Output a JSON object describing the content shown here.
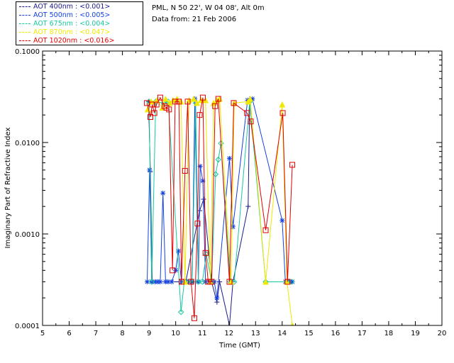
{
  "site_info": {
    "location": "PML, N 50 22', W 04 08', Alt 0m",
    "date": "Data from: 21 Feb 2006"
  },
  "legend": {
    "items": [
      {
        "label": "AOT  400nm : <0.001>",
        "color": "#1a1a8c"
      },
      {
        "label": "AOT  500nm : <0.005>",
        "color": "#1440e0"
      },
      {
        "label": "AOT  675nm : <0.004>",
        "color": "#18c8a0"
      },
      {
        "label": "AOT  870nm : <0.047>",
        "color": "#f0e800"
      },
      {
        "label": "AOT 1020nm : <0.016>",
        "color": "#e00000"
      }
    ]
  },
  "chart_data": {
    "type": "line",
    "title": "",
    "xlabel": "Time (GMT)",
    "ylabel": "Imaginary Part of Refractive Index",
    "xlim": [
      5,
      20
    ],
    "ylim": [
      0.0001,
      0.1
    ],
    "yscale": "log",
    "x_ticks": [
      5,
      6,
      7,
      8,
      9,
      10,
      11,
      12,
      13,
      14,
      15,
      16,
      17,
      18,
      19,
      20
    ],
    "y_ticks": [
      "0.0001",
      "0.0010",
      "0.0100",
      "0.1000"
    ],
    "y_tick_values": [
      0.0001,
      0.001,
      0.01,
      0.1
    ],
    "grid": false,
    "legend_position": "above-top-left",
    "series": [
      {
        "name": "AOT  400nm : <0.001>",
        "color": "#1a1a8c",
        "marker": "plus",
        "x": [
          8.98,
          9.05,
          9.12,
          10.2,
          10.38,
          10.9,
          11.05,
          11.35,
          11.55,
          11.65,
          12.02,
          12.15,
          12.72,
          12.78
        ],
        "y": [
          0.028,
          0.0048,
          0.0003,
          0.0003,
          0.0003,
          0.0018,
          0.0024,
          0.0003,
          0.00018,
          0.0003,
          0.0001,
          0.0003,
          0.002,
          0.03
        ]
      },
      {
        "name": "AOT  500nm : <0.005>",
        "color": "#1440e0",
        "marker": "star",
        "x": [
          8.93,
          9.02,
          9.1,
          9.22,
          9.32,
          9.42,
          9.52,
          9.62,
          9.72,
          9.85,
          10.0,
          10.1,
          10.22,
          10.38,
          10.5,
          10.62,
          10.72,
          10.85,
          10.92,
          11.02,
          11.12,
          11.25,
          11.35,
          11.45,
          11.55,
          12.02,
          12.15,
          12.7,
          12.8,
          12.88,
          14.0,
          14.12,
          14.2,
          14.3,
          14.38
        ],
        "y": [
          0.0003,
          0.005,
          0.0003,
          0.0003,
          0.0003,
          0.0003,
          0.0028,
          0.0003,
          0.0003,
          0.0003,
          0.0004,
          0.00065,
          0.0003,
          0.0003,
          0.0003,
          0.0003,
          0.03,
          0.0003,
          0.0055,
          0.0038,
          0.0003,
          0.0003,
          0.0003,
          0.0003,
          0.0002,
          0.0067,
          0.0012,
          0.029,
          0.029,
          0.03,
          0.0014,
          0.0003,
          0.0003,
          0.0003,
          0.0003
        ]
      },
      {
        "name": "AOT  675nm : <0.004>",
        "color": "#18c8a0",
        "marker": "diamond",
        "x": [
          9.0,
          9.1,
          9.25,
          9.55,
          9.72,
          10.2,
          10.32,
          10.45,
          10.62,
          10.75,
          10.85,
          11.0,
          11.15,
          11.35,
          11.5,
          11.6,
          11.7,
          12.05,
          12.2,
          12.78,
          13.38,
          14.18,
          14.35
        ],
        "y": [
          0.028,
          0.0003,
          0.028,
          0.027,
          0.028,
          0.00014,
          0.0003,
          0.0003,
          0.0003,
          0.027,
          0.0003,
          0.0003,
          0.0006,
          0.0003,
          0.0045,
          0.0065,
          0.0098,
          0.0003,
          0.0003,
          0.028,
          0.0003,
          0.0003,
          0.0003
        ]
      },
      {
        "name": "AOT  870nm : <0.047>",
        "color": "#f0e800",
        "marker": "triangle",
        "x": [
          8.95,
          9.08,
          9.3,
          9.5,
          9.62,
          9.78,
          9.9,
          10.05,
          10.2,
          10.35,
          10.5,
          10.68,
          10.8,
          10.95,
          11.12,
          11.3,
          11.42,
          11.55,
          11.65,
          12.08,
          12.2,
          12.72,
          12.8,
          13.38,
          14.0,
          14.18,
          14.38
        ],
        "y": [
          0.023,
          0.028,
          0.029,
          0.024,
          0.03,
          0.027,
          0.029,
          0.03,
          0.028,
          0.0003,
          0.029,
          0.03,
          0.027,
          0.029,
          0.029,
          0.0003,
          0.027,
          0.029,
          0.03,
          0.0003,
          0.027,
          0.028,
          0.03,
          0.0003,
          0.026,
          0.0003,
          0.0001
        ]
      },
      {
        "name": "AOT 1020nm : <0.016>",
        "color": "#e00000",
        "marker": "square",
        "x": [
          8.92,
          9.05,
          9.12,
          9.2,
          9.28,
          9.42,
          9.58,
          9.65,
          9.75,
          9.88,
          9.98,
          10.12,
          10.22,
          10.35,
          10.45,
          10.58,
          10.7,
          10.82,
          10.9,
          11.02,
          11.12,
          11.22,
          11.35,
          11.48,
          11.6,
          12.02,
          12.18,
          12.68,
          12.82,
          13.38,
          14.02,
          14.2,
          14.38
        ],
        "y": [
          0.027,
          0.019,
          0.026,
          0.021,
          0.026,
          0.031,
          0.025,
          0.024,
          0.023,
          0.0004,
          0.028,
          0.028,
          0.0003,
          0.0049,
          0.028,
          0.0003,
          0.00012,
          0.0013,
          0.02,
          0.031,
          0.00062,
          0.0003,
          0.0003,
          0.025,
          0.03,
          0.0003,
          0.027,
          0.021,
          0.017,
          0.0011,
          0.021,
          0.0003,
          0.0057
        ]
      }
    ]
  }
}
